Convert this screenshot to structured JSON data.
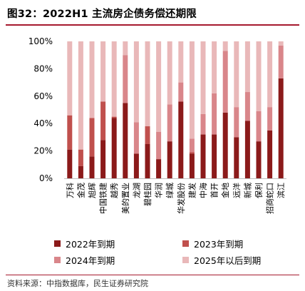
{
  "title": "图32：2022H1 主流房企债务偿还期限",
  "source": "资料来源：中指数据库，民生证券研究院",
  "colors": {
    "y2022": "#8b1a1a",
    "y2023": "#c0504d",
    "y2024": "#d9868a",
    "y2025": "#e9b8b9",
    "accent_line": "#a6192e"
  },
  "legend": [
    {
      "key": "y2022",
      "label": "2022年到期"
    },
    {
      "key": "y2023",
      "label": "2023年到期"
    },
    {
      "key": "y2024",
      "label": "2024年到期"
    },
    {
      "key": "y2025",
      "label": "2025年以后到期"
    }
  ],
  "chart_data": {
    "type": "bar",
    "stacked": true,
    "ylim": [
      0,
      100
    ],
    "yticks": [
      "0%",
      "20%",
      "40%",
      "60%",
      "80%",
      "100%"
    ],
    "categories": [
      "万科",
      "金茂",
      "旭辉",
      "中国铁建",
      "越秀",
      "美的置业",
      "龙湖",
      "碧桂园",
      "华润",
      "绿城",
      "华发股份",
      "建发",
      "中海",
      "首开",
      "金地",
      "远洋",
      "新城",
      "保利",
      "招商蛇口",
      "滨江"
    ],
    "series": [
      {
        "name": "2022年到期",
        "values": [
          21,
          9,
          16,
          28,
          44,
          55,
          18,
          25,
          14,
          27,
          56,
          18,
          32,
          32,
          48,
          30,
          42,
          27,
          35,
          73
        ]
      },
      {
        "name": "2023年到期",
        "values": [
          25,
          12,
          28,
          28,
          1,
          0,
          0,
          13,
          0,
          0,
          0,
          1,
          0,
          0,
          0,
          0,
          0,
          0,
          0,
          0
        ]
      },
      {
        "name": "2024年到期",
        "values": [
          0,
          0,
          0,
          0,
          0,
          35,
          23,
          0,
          20,
          27,
          14,
          10,
          15,
          30,
          45,
          22,
          21,
          22,
          17,
          24
        ]
      },
      {
        "name": "2025年以后到期",
        "values": [
          54,
          79,
          56,
          44,
          55,
          10,
          59,
          62,
          66,
          46,
          30,
          71,
          53,
          38,
          7,
          48,
          37,
          51,
          48,
          3
        ]
      }
    ]
  }
}
